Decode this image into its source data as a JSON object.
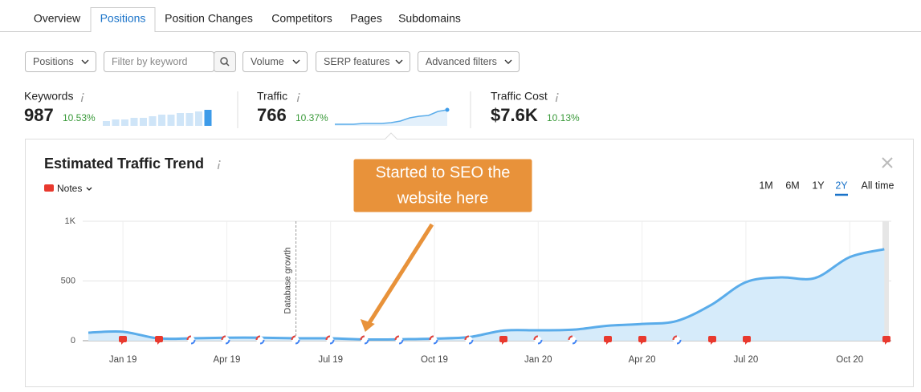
{
  "tabs": [
    "Overview",
    "Positions",
    "Position Changes",
    "Competitors",
    "Pages",
    "Subdomains"
  ],
  "active_tab": 1,
  "filters": [
    "Positions",
    "Filter by keyword",
    "Volume",
    "SERP features",
    "Advanced filters"
  ],
  "metrics": [
    {
      "label": "Keywords",
      "value": "987",
      "change": "10.53%",
      "sparkline": [
        3,
        4,
        4,
        5,
        5,
        6,
        7,
        7,
        8,
        8,
        9,
        10
      ]
    },
    {
      "label": "Traffic",
      "value": "766",
      "change": "10.37%",
      "sparkline": [
        2,
        2,
        2,
        3,
        3,
        3,
        4,
        6,
        10,
        12,
        13,
        18,
        20
      ]
    },
    {
      "label": "Traffic Cost",
      "value": "$7.6K",
      "change": "10.13%"
    }
  ],
  "chart_data": {
    "type": "area",
    "title": "Estimated Traffic Trend",
    "notes_label": "Notes",
    "ranges": [
      "1M",
      "6M",
      "1Y",
      "2Y",
      "All time"
    ],
    "active_range": 3,
    "categories": [
      null,
      "Jan 19",
      null,
      null,
      "Apr 19",
      null,
      null,
      "Jul 19",
      null,
      null,
      "Oct 19",
      null,
      null,
      "Jan 20",
      null,
      null,
      "Apr 20",
      null,
      null,
      "Jul 20",
      null,
      null,
      "Oct 20",
      null
    ],
    "values": [
      67,
      75,
      20,
      20,
      25,
      25,
      20,
      20,
      10,
      12,
      18,
      30,
      85,
      87,
      92,
      125,
      140,
      165,
      300,
      490,
      530,
      525,
      700,
      766
    ],
    "color": "#5aacea",
    "fill": "#d6ebfa",
    "ylim": [
      0,
      1000
    ],
    "yticks": [
      0,
      500,
      {
        "value": 1000,
        "label": "1K"
      }
    ],
    "grid": true,
    "marker": {
      "label": "Database growth",
      "index": 6
    },
    "annotation": {
      "lines": [
        "Started to SEO the",
        "website here"
      ],
      "index": 8
    }
  }
}
